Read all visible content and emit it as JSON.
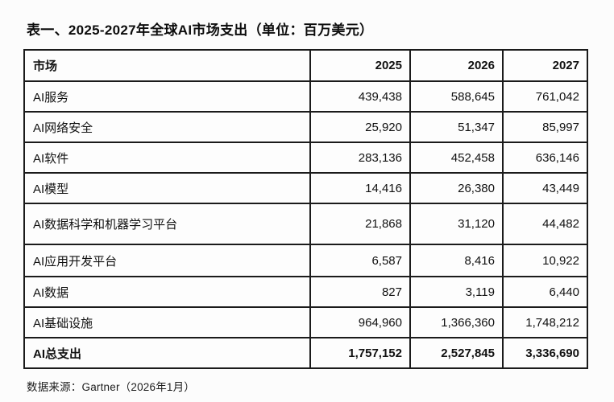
{
  "title": "表一、2025-2027年全球AI市场支出（单位：百万美元）",
  "source_note": "数据来源：Gartner（2026年1月）",
  "colors": {
    "border": "#1b1b1b",
    "text": "#111111",
    "background": "#fcfcfc"
  },
  "table": {
    "columns": [
      "市场",
      "2025",
      "2026",
      "2027"
    ],
    "rows": [
      [
        "AI服务",
        "439,438",
        "588,645",
        "761,042"
      ],
      [
        "AI网络安全",
        "25,920",
        "51,347",
        "85,997"
      ],
      [
        "AI软件",
        "283,136",
        "452,458",
        "636,146"
      ],
      [
        "AI模型",
        "14,416",
        "26,380",
        "43,449"
      ],
      [
        "AI数据科学和机器学习平台",
        "21,868",
        "31,120",
        "44,482"
      ],
      [
        "AI应用开发平台",
        "6,587",
        "8,416",
        "10,922"
      ],
      [
        "AI数据",
        "827",
        "3,119",
        "6,440"
      ],
      [
        "AI基础设施",
        "964,960",
        "1,366,360",
        "1,748,212"
      ],
      [
        "AI总支出",
        "1,757,152",
        "2,527,845",
        "3,336,690"
      ]
    ]
  },
  "chart_data": {
    "type": "table",
    "title": "表一、2025-2027年全球AI市场支出（单位：百万美元）",
    "unit": "百万美元",
    "columns": [
      "市场",
      "2025",
      "2026",
      "2027"
    ],
    "rows": [
      {
        "market": "AI服务",
        "y2025": 439438,
        "y2026": 588645,
        "y2027": 761042
      },
      {
        "market": "AI网络安全",
        "y2025": 25920,
        "y2026": 51347,
        "y2027": 85997
      },
      {
        "market": "AI软件",
        "y2025": 283136,
        "y2026": 452458,
        "y2027": 636146
      },
      {
        "market": "AI模型",
        "y2025": 14416,
        "y2026": 26380,
        "y2027": 43449
      },
      {
        "market": "AI数据科学和机器学习平台",
        "y2025": 21868,
        "y2026": 31120,
        "y2027": 44482
      },
      {
        "market": "AI应用开发平台",
        "y2025": 6587,
        "y2026": 8416,
        "y2027": 10922
      },
      {
        "market": "AI数据",
        "y2025": 827,
        "y2026": 3119,
        "y2027": 6440
      },
      {
        "market": "AI基础设施",
        "y2025": 964960,
        "y2026": 1366360,
        "y2027": 1748212
      },
      {
        "market": "AI总支出",
        "y2025": 1757152,
        "y2026": 2527845,
        "y2027": 3336690
      }
    ],
    "source": "数据来源：Gartner（2026年1月）"
  }
}
